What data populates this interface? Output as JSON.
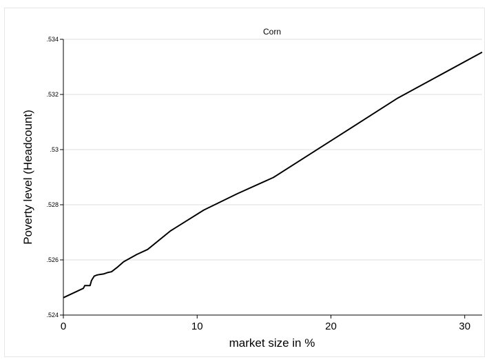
{
  "chart_data": {
    "type": "line",
    "title": "Corn",
    "xlabel": "market size in %",
    "ylabel": "Poverty level (Headcount)",
    "xlim": [
      0,
      31.3
    ],
    "ylim": [
      0.524,
      0.534
    ],
    "x_ticks": [
      0,
      10,
      20,
      30
    ],
    "x_tick_labels": [
      "0",
      "10",
      "20",
      "30"
    ],
    "y_ticks": [
      0.524,
      0.526,
      0.528,
      0.53,
      0.532,
      0.534
    ],
    "y_tick_labels": [
      ".524",
      ".526",
      ".528",
      ".53",
      ".532",
      ".534"
    ],
    "grid": "horizontal",
    "series": [
      {
        "color": "#000000",
        "x": [
          0,
          1.5,
          1.6,
          2.0,
          2.1,
          2.3,
          2.5,
          2.7,
          3.0,
          3.3,
          3.6,
          4.0,
          4.5,
          5.5,
          6.3,
          8.0,
          10.5,
          13.0,
          15.7,
          20.0,
          25.0,
          31.3
        ],
        "y": [
          0.52463,
          0.52497,
          0.52507,
          0.52507,
          0.52525,
          0.52541,
          0.52545,
          0.52547,
          0.52549,
          0.52554,
          0.52557,
          0.52572,
          0.52593,
          0.5262,
          0.52638,
          0.52705,
          0.52781,
          0.5284,
          0.52899,
          0.53032,
          0.53187,
          0.53353
        ]
      }
    ]
  }
}
